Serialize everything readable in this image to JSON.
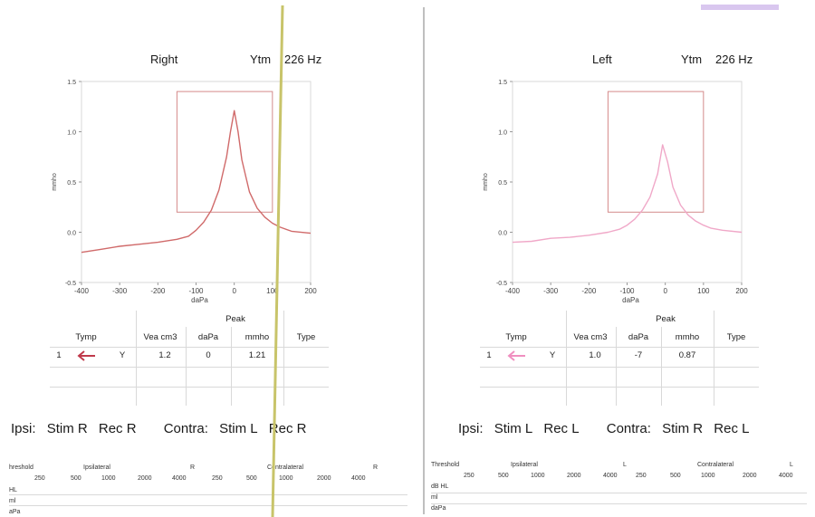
{
  "right": {
    "ear": "Right",
    "probe": "Ytm",
    "freq": "226 Hz",
    "table": {
      "peak_header": "Peak",
      "headers": [
        "Tymp",
        "Vea cm3",
        "daPa",
        "mmho",
        "Type"
      ],
      "row": {
        "num": "1",
        "y": "Y",
        "vea": "1.2",
        "dapa": "0",
        "mmho": "1.21"
      }
    },
    "reflex": {
      "ipsi": "Ipsi:",
      "ipsi_stim": "Stim R",
      "ipsi_rec": "Rec R",
      "contra": "Contra:",
      "contra_stim": "Stim L",
      "contra_rec": "Rec R"
    },
    "threshold": {
      "label": "hreshold",
      "ipsilateral": "Ipsilateral",
      "ear": "R",
      "contralateral": "Contralateral",
      "ear2": "R",
      "freqs": [
        "250",
        "500",
        "1000",
        "2000",
        "4000",
        "250",
        "500",
        "1000",
        "2000",
        "4000"
      ],
      "rows": [
        "HL",
        "ml",
        "aPa"
      ]
    }
  },
  "left": {
    "ear": "Left",
    "probe": "Ytm",
    "freq": "226 Hz",
    "table": {
      "peak_header": "Peak",
      "headers": [
        "Tymp",
        "Vea cm3",
        "daPa",
        "mmho",
        "Type"
      ],
      "row": {
        "num": "1",
        "y": "Y",
        "vea": "1.0",
        "dapa": "-7",
        "mmho": "0.87"
      }
    },
    "reflex": {
      "ipsi": "Ipsi:",
      "ipsi_stim": "Stim L",
      "ipsi_rec": "Rec L",
      "contra": "Contra:",
      "contra_stim": "Stim R",
      "contra_rec": "Rec L"
    },
    "threshold": {
      "label": "Threshold",
      "ipsilateral": "Ipsilateral",
      "ear": "L",
      "contralateral": "Contralateral",
      "ear2": "L",
      "freqs": [
        "250",
        "500",
        "1000",
        "2000",
        "4000",
        "250",
        "500",
        "1000",
        "2000",
        "4000"
      ],
      "rows": [
        "dB HL",
        "ml",
        "daPa"
      ]
    }
  },
  "colors": {
    "right_curve": "#d06a6a",
    "left_curve": "#f0a8c8",
    "box": "#d48a8a",
    "marker": "#c1c000"
  },
  "chart_data": [
    {
      "type": "line",
      "title": "Right",
      "xlabel": "daPa",
      "ylabel": "mmho",
      "xlim": [
        -400,
        200
      ],
      "ylim": [
        -0.5,
        1.5
      ],
      "xticks": [
        -400,
        -300,
        -200,
        -100,
        0,
        100,
        200
      ],
      "yticks": [
        -0.5,
        0.0,
        0.5,
        1.0,
        1.5
      ],
      "box": {
        "x": [
          -150,
          100
        ],
        "y": [
          0.2,
          1.4
        ]
      },
      "series": [
        {
          "x": [
            -400,
            -350,
            -300,
            -250,
            -200,
            -150,
            -120,
            -100,
            -80,
            -60,
            -40,
            -20,
            -10,
            0,
            10,
            20,
            40,
            60,
            80,
            100,
            120,
            150,
            200
          ],
          "values": [
            -0.2,
            -0.17,
            -0.14,
            -0.12,
            -0.1,
            -0.07,
            -0.04,
            0.02,
            0.1,
            0.22,
            0.42,
            0.75,
            1.0,
            1.21,
            1.0,
            0.72,
            0.4,
            0.24,
            0.15,
            0.09,
            0.05,
            0.01,
            -0.01
          ]
        }
      ]
    },
    {
      "type": "line",
      "title": "Left",
      "xlabel": "daPa",
      "ylabel": "mmho",
      "xlim": [
        -400,
        200
      ],
      "ylim": [
        -0.5,
        1.5
      ],
      "xticks": [
        -400,
        -300,
        -200,
        -100,
        0,
        100,
        200
      ],
      "yticks": [
        -0.5,
        0.0,
        0.5,
        1.0,
        1.5
      ],
      "box": {
        "x": [
          -150,
          100
        ],
        "y": [
          0.2,
          1.4
        ]
      },
      "series": [
        {
          "x": [
            -400,
            -350,
            -300,
            -250,
            -200,
            -150,
            -120,
            -100,
            -80,
            -60,
            -40,
            -20,
            -7,
            6,
            20,
            40,
            60,
            80,
            100,
            120,
            150,
            200
          ],
          "values": [
            -0.1,
            -0.09,
            -0.06,
            -0.05,
            -0.03,
            0.0,
            0.03,
            0.07,
            0.13,
            0.22,
            0.35,
            0.58,
            0.87,
            0.7,
            0.45,
            0.27,
            0.17,
            0.11,
            0.07,
            0.04,
            0.02,
            0.0
          ]
        }
      ]
    }
  ]
}
